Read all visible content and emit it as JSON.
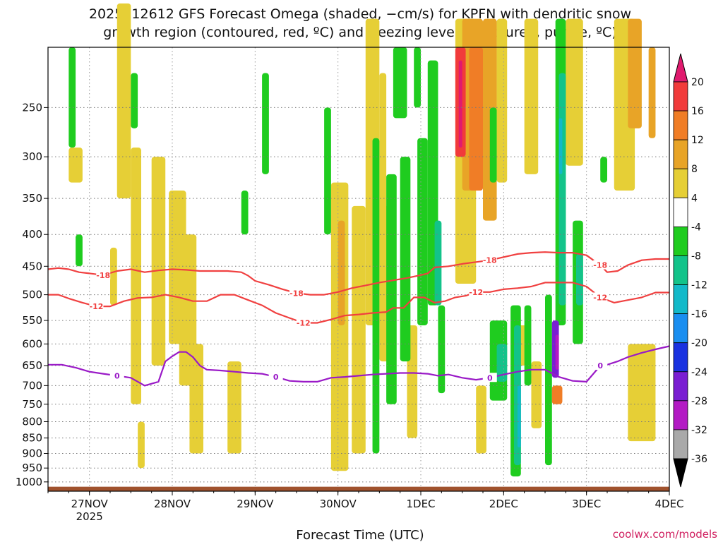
{
  "chart_data": {
    "type": "heatmap",
    "title_lines": [
      "2025112612 GFS Forecast Omega (shaded, −cm/s) for KPFN with dendritic snow",
      "growth region (contoured, red, ºC) and freezing level (contoured, purple, ºC)"
    ],
    "xlabel": "Forecast Time (UTC)",
    "credit": "coolwx.com/models",
    "x_ticks": [
      {
        "label": "27NOV",
        "sub": "2025",
        "hour": 12
      },
      {
        "label": "28NOV",
        "sub": "",
        "hour": 36
      },
      {
        "label": "29NOV",
        "sub": "",
        "hour": 60
      },
      {
        "label": "30NOV",
        "sub": "",
        "hour": 84
      },
      {
        "label": "1DEC",
        "sub": "",
        "hour": 108
      },
      {
        "label": "2DEC",
        "sub": "",
        "hour": 132
      },
      {
        "label": "3DEC",
        "sub": "",
        "hour": 156
      },
      {
        "label": "4DEC",
        "sub": "",
        "hour": 180
      }
    ],
    "x_range_hours": [
      0,
      180
    ],
    "y_label": "",
    "y_ticks_hpa": [
      250,
      300,
      350,
      400,
      450,
      500,
      550,
      600,
      650,
      700,
      750,
      800,
      850,
      900,
      950,
      1000
    ],
    "y_range_hpa": [
      200,
      1035
    ],
    "y_scale": "log-pressure",
    "grid": true,
    "colorbar": {
      "ticks": [
        "20",
        "16",
        "12",
        "8",
        "4",
        "-4",
        "-8",
        "-12",
        "-16",
        "-20",
        "-24",
        "-28",
        "-32",
        "-36"
      ],
      "bins": [
        {
          "color": "#e01a6e"
        },
        {
          "color": "#f13b3b"
        },
        {
          "color": "#f07d26"
        },
        {
          "color": "#e8a427"
        },
        {
          "color": "#e6cf36"
        },
        {
          "color": "#ffffff"
        },
        {
          "color": "#1fcc1f"
        },
        {
          "color": "#13c38a"
        },
        {
          "color": "#13b9c9"
        },
        {
          "color": "#1a8ef0"
        },
        {
          "color": "#1a32e0"
        },
        {
          "color": "#7a1ed2"
        },
        {
          "color": "#b31ac4"
        },
        {
          "color": "#a9a9a9"
        },
        {
          "color": "#000000"
        }
      ]
    },
    "contours": [
      {
        "label": "-18",
        "color": "#f04040",
        "points": [
          [
            0,
            455
          ],
          [
            3,
            453
          ],
          [
            6,
            455
          ],
          [
            9,
            460
          ],
          [
            12,
            462
          ],
          [
            16,
            465
          ],
          [
            20,
            458
          ],
          [
            24,
            455
          ],
          [
            28,
            460
          ],
          [
            32,
            457
          ],
          [
            36,
            455
          ],
          [
            40,
            456
          ],
          [
            44,
            458
          ],
          [
            48,
            458
          ],
          [
            52,
            458
          ],
          [
            56,
            460
          ],
          [
            58,
            466
          ],
          [
            60,
            475
          ],
          [
            64,
            482
          ],
          [
            68,
            490
          ],
          [
            72,
            497
          ],
          [
            76,
            500
          ],
          [
            80,
            500
          ],
          [
            84,
            495
          ],
          [
            88,
            488
          ],
          [
            92,
            483
          ],
          [
            96,
            478
          ],
          [
            100,
            474
          ],
          [
            104,
            470
          ],
          [
            108,
            465
          ],
          [
            110,
            462
          ],
          [
            112,
            452
          ],
          [
            116,
            450
          ],
          [
            120,
            446
          ],
          [
            124,
            443
          ],
          [
            128,
            440
          ],
          [
            132,
            435
          ],
          [
            136,
            430
          ],
          [
            140,
            428
          ],
          [
            144,
            427
          ],
          [
            148,
            428
          ],
          [
            152,
            428
          ],
          [
            156,
            432
          ],
          [
            158,
            440
          ],
          [
            160,
            448
          ],
          [
            162,
            460
          ],
          [
            165,
            458
          ],
          [
            168,
            448
          ],
          [
            172,
            440
          ],
          [
            176,
            438
          ],
          [
            180,
            438
          ]
        ]
      },
      {
        "label": "-12",
        "color": "#f04040",
        "points": [
          [
            0,
            500
          ],
          [
            3,
            500
          ],
          [
            6,
            507
          ],
          [
            10,
            515
          ],
          [
            14,
            522
          ],
          [
            18,
            522
          ],
          [
            22,
            512
          ],
          [
            26,
            506
          ],
          [
            30,
            505
          ],
          [
            34,
            500
          ],
          [
            38,
            505
          ],
          [
            42,
            512
          ],
          [
            46,
            512
          ],
          [
            50,
            500
          ],
          [
            54,
            500
          ],
          [
            58,
            510
          ],
          [
            62,
            520
          ],
          [
            66,
            535
          ],
          [
            70,
            545
          ],
          [
            74,
            555
          ],
          [
            78,
            555
          ],
          [
            82,
            548
          ],
          [
            86,
            540
          ],
          [
            90,
            538
          ],
          [
            94,
            535
          ],
          [
            98,
            533
          ],
          [
            100,
            525
          ],
          [
            103,
            525
          ],
          [
            106,
            505
          ],
          [
            109,
            505
          ],
          [
            112,
            515
          ],
          [
            115,
            512
          ],
          [
            118,
            505
          ],
          [
            121,
            502
          ],
          [
            124,
            495
          ],
          [
            128,
            495
          ],
          [
            132,
            490
          ],
          [
            136,
            488
          ],
          [
            140,
            485
          ],
          [
            144,
            478
          ],
          [
            148,
            478
          ],
          [
            152,
            478
          ],
          [
            156,
            485
          ],
          [
            160,
            505
          ],
          [
            164,
            515
          ],
          [
            168,
            510
          ],
          [
            172,
            505
          ],
          [
            176,
            496
          ],
          [
            180,
            496
          ]
        ]
      },
      {
        "label": "0",
        "color": "#9a1ac7",
        "points": [
          [
            0,
            648
          ],
          [
            4,
            648
          ],
          [
            8,
            655
          ],
          [
            12,
            665
          ],
          [
            16,
            670
          ],
          [
            20,
            675
          ],
          [
            24,
            680
          ],
          [
            28,
            700
          ],
          [
            32,
            690
          ],
          [
            34,
            640
          ],
          [
            36,
            628
          ],
          [
            38,
            618
          ],
          [
            40,
            618
          ],
          [
            42,
            630
          ],
          [
            44,
            650
          ],
          [
            46,
            660
          ],
          [
            50,
            662
          ],
          [
            54,
            665
          ],
          [
            58,
            668
          ],
          [
            62,
            670
          ],
          [
            66,
            678
          ],
          [
            70,
            688
          ],
          [
            74,
            690
          ],
          [
            78,
            690
          ],
          [
            82,
            680
          ],
          [
            86,
            678
          ],
          [
            90,
            675
          ],
          [
            94,
            672
          ],
          [
            98,
            670
          ],
          [
            102,
            668
          ],
          [
            106,
            668
          ],
          [
            110,
            670
          ],
          [
            113,
            675
          ],
          [
            116,
            672
          ],
          [
            120,
            680
          ],
          [
            124,
            685
          ],
          [
            128,
            680
          ],
          [
            132,
            672
          ],
          [
            136,
            665
          ],
          [
            140,
            660
          ],
          [
            144,
            660
          ],
          [
            148,
            678
          ],
          [
            152,
            688
          ],
          [
            156,
            690
          ],
          [
            158,
            670
          ],
          [
            160,
            650
          ],
          [
            162,
            648
          ],
          [
            165,
            640
          ],
          [
            168,
            630
          ],
          [
            172,
            620
          ],
          [
            176,
            612
          ],
          [
            180,
            605
          ]
        ]
      }
    ]
  }
}
